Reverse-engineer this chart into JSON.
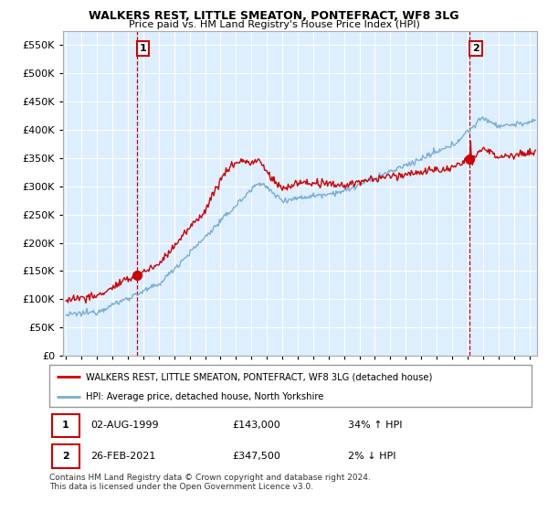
{
  "title": "WALKERS REST, LITTLE SMEATON, PONTEFRACT, WF8 3LG",
  "subtitle": "Price paid vs. HM Land Registry's House Price Index (HPI)",
  "legend_entry1": "WALKERS REST, LITTLE SMEATON, PONTEFRACT, WF8 3LG (detached house)",
  "legend_entry2": "HPI: Average price, detached house, North Yorkshire",
  "annotation1_date": "02-AUG-1999",
  "annotation1_price": "£143,000",
  "annotation1_hpi": "34% ↑ HPI",
  "annotation2_date": "26-FEB-2021",
  "annotation2_price": "£347,500",
  "annotation2_hpi": "2% ↓ HPI",
  "footer": "Contains HM Land Registry data © Crown copyright and database right 2024.\nThis data is licensed under the Open Government Licence v3.0.",
  "red_color": "#cc0000",
  "blue_color": "#7aadd4",
  "bg_color": "#ddeeff",
  "ylim": [
    0,
    575000
  ],
  "yticks": [
    0,
    50000,
    100000,
    150000,
    200000,
    250000,
    300000,
    350000,
    400000,
    450000,
    500000,
    550000
  ],
  "xmin": 1994.8,
  "xmax": 2025.5,
  "sale1_x": 1999.58,
  "sale1_y": 143000,
  "sale2_x": 2021.15,
  "sale2_y": 347500
}
